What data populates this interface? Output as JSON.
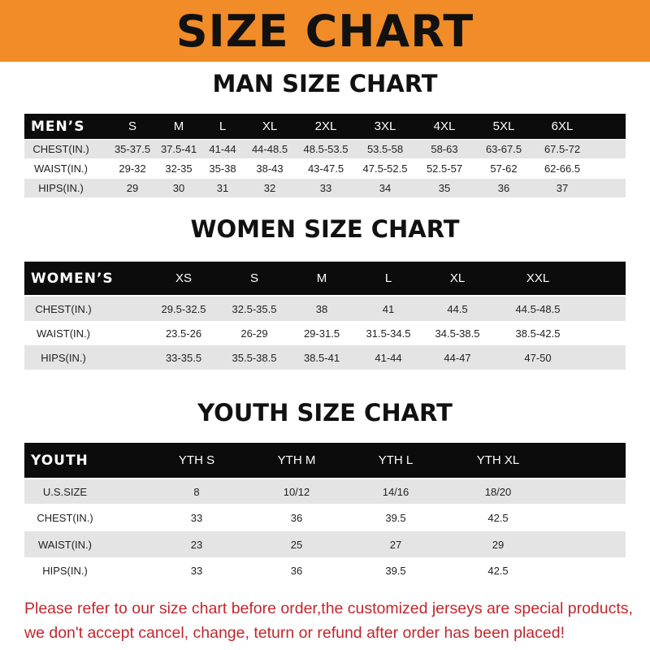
{
  "banner_title": "SIZE CHART",
  "colors": {
    "banner": "#f28c28",
    "note": "#c0272d",
    "header_row": "#0c0c0c",
    "stripe": "#e4e4e4"
  },
  "men": {
    "title": "MAN SIZE CHART",
    "header": [
      "MEN’S",
      "S",
      "M",
      "L",
      "XL",
      "2XL",
      "3XL",
      "4XL",
      "5XL",
      "6XL"
    ],
    "rows": [
      [
        "CHEST(IN.)",
        "35-37.5",
        "37.5-41",
        "41-44",
        "44-48.5",
        "48.5-53.5",
        "53.5-58",
        "58-63",
        "63-67.5",
        "67.5-72"
      ],
      [
        "WAIST(IN.)",
        "29-32",
        "32-35",
        "35-38",
        "38-43",
        "43-47.5",
        "47.5-52.5",
        "52.5-57",
        "57-62",
        "62-66.5"
      ],
      [
        "HIPS(IN.)",
        "29",
        "30",
        "31",
        "32",
        "33",
        "34",
        "35",
        "36",
        "37"
      ]
    ]
  },
  "women": {
    "title": "WOMEN SIZE CHART",
    "header": [
      "WOMEN’S",
      "XS",
      "S",
      "M",
      "L",
      "XL",
      "XXL"
    ],
    "rows": [
      [
        "CHEST(IN.)",
        "29.5-32.5",
        "32.5-35.5",
        "38",
        "41",
        "44.5",
        "44.5-48.5"
      ],
      [
        "WAIST(IN.)",
        "23.5-26",
        "26-29",
        "29-31.5",
        "31.5-34.5",
        "34.5-38.5",
        "38.5-42.5"
      ],
      [
        "HIPS(IN.)",
        "33-35.5",
        "35.5-38.5",
        "38.5-41",
        "41-44",
        "44-47",
        "47-50"
      ]
    ]
  },
  "youth": {
    "title": "YOUTH SIZE CHART",
    "header": [
      "YOUTH",
      "YTH S",
      "YTH M",
      "YTH L",
      "YTH XL"
    ],
    "rows": [
      [
        "U.S.SIZE",
        "8",
        "10/12",
        "14/16",
        "18/20"
      ],
      [
        "CHEST(IN.)",
        "33",
        "36",
        "39.5",
        "42.5"
      ],
      [
        "WAIST(IN.)",
        "23",
        "25",
        "27",
        "29"
      ],
      [
        "HIPS(IN.)",
        "33",
        "36",
        "39.5",
        "42.5"
      ]
    ]
  },
  "note": [
    "Please refer to our size chart before order,the customized jerseys are special products,",
    "we don't accept cancel, change, teturn or refund after order has been placed!"
  ]
}
